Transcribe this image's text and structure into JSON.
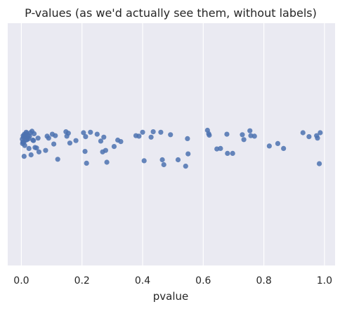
{
  "chart_data": {
    "type": "scatter",
    "subtype": "strip",
    "title": "P-values (as we'd actually see them, without labels)",
    "xlabel": "pvalue",
    "ylabel": "",
    "xlim": [
      -0.045,
      1.035
    ],
    "x_ticks": [
      0.0,
      0.2,
      0.4,
      0.6,
      0.8,
      1.0
    ],
    "x_tick_labels": [
      "0.0",
      "0.2",
      "0.4",
      "0.6",
      "0.8",
      "1.0"
    ],
    "grid": "vertical",
    "point_color": "#4c72b0",
    "background_color": "#eaeaf2",
    "grid_color": "#ffffff",
    "x": [
      0.003,
      0.006,
      0.008,
      0.01,
      0.012,
      0.015,
      0.016,
      0.018,
      0.02,
      0.022,
      0.024,
      0.025,
      0.03,
      0.032,
      0.035,
      0.04,
      0.042,
      0.045,
      0.055,
      0.058,
      0.004,
      0.007,
      0.011,
      0.013,
      0.019,
      0.027,
      0.038,
      0.05,
      0.005,
      0.009,
      0.085,
      0.08,
      0.09,
      0.102,
      0.107,
      0.112,
      0.12,
      0.147,
      0.15,
      0.155,
      0.16,
      0.18,
      0.205,
      0.21,
      0.212,
      0.215,
      0.228,
      0.25,
      0.262,
      0.268,
      0.272,
      0.278,
      0.282,
      0.306,
      0.318,
      0.328,
      0.378,
      0.388,
      0.4,
      0.405,
      0.428,
      0.435,
      0.46,
      0.465,
      0.47,
      0.492,
      0.517,
      0.542,
      0.548,
      0.55,
      0.614,
      0.618,
      0.62,
      0.645,
      0.657,
      0.678,
      0.68,
      0.697,
      0.729,
      0.734,
      0.754,
      0.757,
      0.769,
      0.818,
      0.846,
      0.865,
      0.929,
      0.949,
      0.974,
      0.977,
      0.983,
      0.986
    ],
    "y_jitter": [
      -0.03,
      0.04,
      -0.1,
      0.07,
      0.02,
      -0.05,
      0.11,
      0.09,
      0.0,
      0.05,
      -0.02,
      -0.22,
      0.1,
      -0.35,
      0.13,
      -0.06,
      0.08,
      -0.2,
      -0.01,
      -0.29,
      -0.12,
      0.01,
      -0.16,
      0.06,
      -0.04,
      0.03,
      -0.05,
      -0.21,
      -0.09,
      -0.38,
      0.03,
      -0.26,
      -0.01,
      0.07,
      -0.13,
      0.04,
      -0.44,
      0.12,
      0.03,
      0.09,
      -0.11,
      -0.06,
      0.1,
      -0.28,
      0.02,
      -0.52,
      0.11,
      0.07,
      -0.07,
      -0.29,
      0.01,
      -0.26,
      -0.5,
      -0.18,
      -0.05,
      -0.08,
      0.04,
      0.03,
      0.11,
      -0.47,
      0.01,
      0.12,
      0.11,
      -0.45,
      -0.55,
      0.06,
      -0.45,
      -0.58,
      -0.02,
      -0.33,
      0.15,
      0.08,
      0.05,
      -0.23,
      -0.22,
      0.07,
      -0.32,
      -0.32,
      0.06,
      -0.04,
      0.14,
      0.04,
      0.03,
      -0.17,
      -0.12,
      -0.22,
      0.1,
      0.02,
      0.04,
      -0.01,
      -0.53,
      0.1
    ]
  }
}
